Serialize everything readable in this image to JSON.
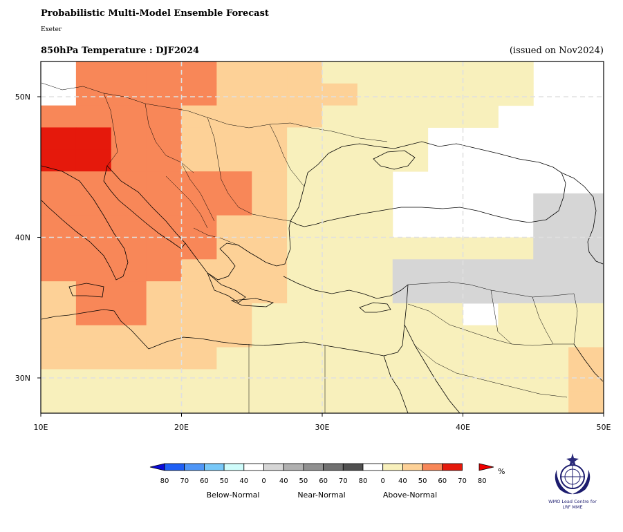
{
  "header": {
    "title": "Probabilistic Multi-Model Ensemble Forecast",
    "centre": "Exeter",
    "subtitle": "850hPa Temperature : DJF2024",
    "issued": "(issued on Nov2024)"
  },
  "map": {
    "lon_range": [
      10,
      50
    ],
    "lat_range": [
      27.5,
      52.5
    ],
    "grid": true,
    "x_ticks": [
      "10E",
      "20E",
      "30E",
      "40E",
      "50E"
    ],
    "y_ticks": [
      "30N",
      "40N",
      "50N"
    ],
    "basemap": "coastlines-and-country-borders",
    "cells_note": "categories per 2.5x2.5 degree cell",
    "cell_cats": [
      [
        null,
        "A60",
        "A60",
        "A60",
        "A60",
        "A50",
        "A50",
        "A50",
        "A40",
        "A40",
        "A40",
        "A40",
        "A40",
        "A40",
        null,
        null
      ],
      [
        null,
        "A60",
        "A60",
        "A60",
        "A60",
        "A50",
        "A50",
        "A50",
        "A50",
        "A40",
        "A40",
        "A40",
        "A40",
        "A40",
        null,
        null
      ],
      [
        "A60",
        "A60",
        "A60",
        "A60",
        "A50",
        "A50",
        "A50",
        "A50",
        "A40",
        "A40",
        "A40",
        "A40",
        "A40",
        null,
        null,
        null
      ],
      [
        "A70",
        "A70",
        "A60",
        "A60",
        "A50",
        "A50",
        "A50",
        "A40",
        "A40",
        "A40",
        "A40",
        null,
        null,
        null,
        null,
        null
      ],
      [
        "A70",
        "A70",
        "A60",
        "A60",
        "A50",
        "A50",
        "A50",
        "A40",
        "A40",
        "A40",
        "A40",
        null,
        null,
        null,
        null,
        null
      ],
      [
        "A60",
        "A60",
        "A60",
        "A60",
        "A60",
        "A60",
        "A50",
        "A40",
        "A40",
        "A40",
        null,
        null,
        null,
        null,
        null,
        null
      ],
      [
        "A60",
        "A60",
        "A60",
        "A60",
        "A60",
        "A60",
        "A50",
        "A40",
        "A40",
        "A40",
        null,
        null,
        null,
        null,
        "N40",
        "N40"
      ],
      [
        "A60",
        "A60",
        "A60",
        "A60",
        "A60",
        "A50",
        "A50",
        "A40",
        "A40",
        "A40",
        null,
        null,
        null,
        null,
        "N40",
        "N40"
      ],
      [
        "A60",
        "A60",
        "A60",
        "A60",
        "A60",
        "A50",
        "A50",
        "A40",
        "A40",
        "A40",
        "A40",
        "A40",
        "A40",
        "A40",
        "N40",
        "N40"
      ],
      [
        "A60",
        "A60",
        "A60",
        "A60",
        "A50",
        "A50",
        "A50",
        "A40",
        "A40",
        "A40",
        "N40",
        "N40",
        "N40",
        "N40",
        "N40",
        "N40"
      ],
      [
        "A50",
        "A60",
        "A60",
        "A50",
        "A50",
        "A50",
        "A50",
        "A40",
        "A40",
        "A40",
        "N40",
        "N40",
        "N40",
        "N40",
        "N40",
        "N40"
      ],
      [
        "A50",
        "A60",
        "A60",
        "A50",
        "A50",
        "A50",
        "A40",
        "A40",
        "A40",
        "A40",
        "A40",
        "A40",
        null,
        "A40",
        "A40",
        "A40"
      ],
      [
        "A50",
        "A50",
        "A50",
        "A50",
        "A50",
        "A50",
        "A40",
        "A40",
        "A40",
        "A40",
        "A40",
        "A40",
        "A40",
        "A40",
        "A40",
        "A40"
      ],
      [
        "A50",
        "A50",
        "A50",
        "A50",
        "A50",
        "A40",
        "A40",
        "A40",
        "A40",
        "A40",
        "A40",
        "A40",
        "A40",
        "A40",
        "A40",
        "A50"
      ],
      [
        "A40",
        "A40",
        "A40",
        "A40",
        "A40",
        "A40",
        "A40",
        "A40",
        "A40",
        "A40",
        "A40",
        "A40",
        "A40",
        "A40",
        "A40",
        "A50"
      ],
      [
        "A40",
        "A40",
        "A40",
        "A40",
        "A40",
        "A40",
        "A40",
        "A40",
        "A40",
        "A40",
        "A40",
        "A40",
        "A40",
        "A40",
        "A40",
        "A50"
      ]
    ]
  },
  "colorbar": {
    "unit": "%",
    "groups": [
      "Below-Normal",
      "Near-Normal",
      "Above-Normal"
    ],
    "numbers": [
      "80",
      "70",
      "60",
      "50",
      "40",
      "0",
      "40",
      "50",
      "60",
      "70",
      "80",
      "0",
      "40",
      "50",
      "60",
      "70",
      "80"
    ],
    "colors": {
      "below": [
        "#0a0ad8",
        "#1f5ff5",
        "#4f96f7",
        "#78c8f8",
        "#cffcfb"
      ],
      "near": [
        "#d6d6d6",
        "#b0b0b0",
        "#909090",
        "#707070",
        "#505050"
      ],
      "above": [
        "#f8f0bc",
        "#fdd197",
        "#f88758",
        "#e5190c",
        "#f00000"
      ]
    }
  },
  "logo": {
    "line1": "WMO Lead Centre for",
    "line2": "LRF MME"
  }
}
